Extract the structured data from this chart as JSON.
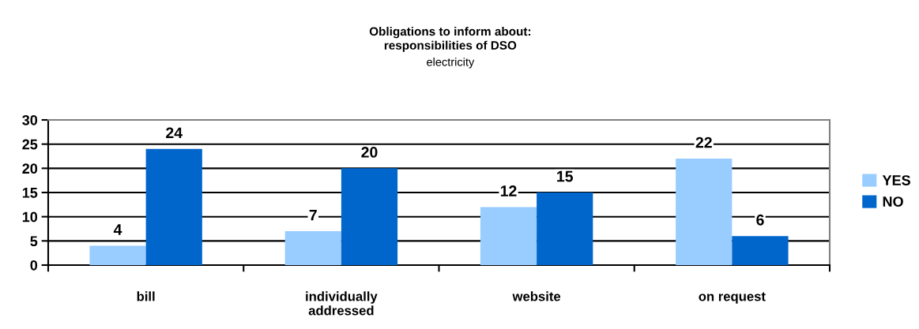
{
  "chart_data": {
    "type": "bar",
    "title": "Obligations to inform about:\nresponsibilities of DSO",
    "subtitle": "electricity",
    "categories": [
      "bill",
      "individually\naddressed",
      "website",
      "on request"
    ],
    "series": [
      {
        "name": "YES",
        "color": "#99ccff",
        "values": [
          4,
          7,
          12,
          22
        ]
      },
      {
        "name": "NO",
        "color": "#0066cc",
        "values": [
          24,
          20,
          15,
          6
        ]
      }
    ],
    "ylim": [
      0,
      30
    ],
    "yticks": [
      0,
      5,
      10,
      15,
      20,
      25,
      30
    ],
    "grid": "y",
    "legend": "right",
    "data_labels": true
  }
}
